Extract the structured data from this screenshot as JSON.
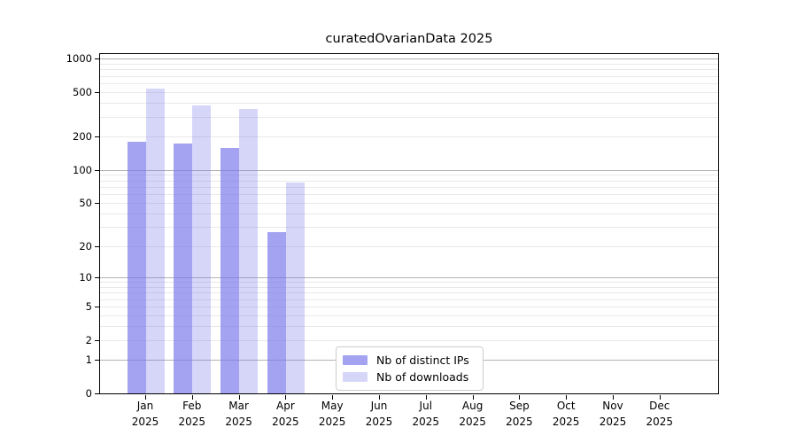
{
  "chart_data": {
    "type": "bar",
    "title": "curatedOvarianData 2025",
    "categories": [
      "Jan 2025",
      "Feb 2025",
      "Mar 2025",
      "Apr 2025",
      "May 2025",
      "Jun 2025",
      "Jul 2025",
      "Aug 2025",
      "Sep 2025",
      "Oct 2025",
      "Nov 2025",
      "Dec 2025"
    ],
    "series": [
      {
        "name": "Nb of distinct IPs",
        "color": "#7878EBAD",
        "color_on_white": "#a3a3f1",
        "values": [
          178,
          172,
          158,
          27,
          0,
          0,
          0,
          0,
          0,
          0,
          0,
          0
        ]
      },
      {
        "name": "Nb of downloads",
        "color": "#7878EB4D",
        "color_on_white": "#d6d6f8",
        "values": [
          540,
          377,
          355,
          76,
          0,
          0,
          0,
          0,
          0,
          0,
          0,
          0
        ]
      }
    ],
    "yscale": "log1p",
    "ylim": [
      0,
      1100
    ],
    "yticks": [
      0,
      1,
      2,
      5,
      10,
      20,
      50,
      100,
      200,
      500,
      1000
    ],
    "grid": {
      "enabled": true,
      "major_color": "#b2b2b2",
      "minor_color": "#e9e9e9"
    },
    "legend_position": "lower center",
    "axis_color": "#000000"
  }
}
